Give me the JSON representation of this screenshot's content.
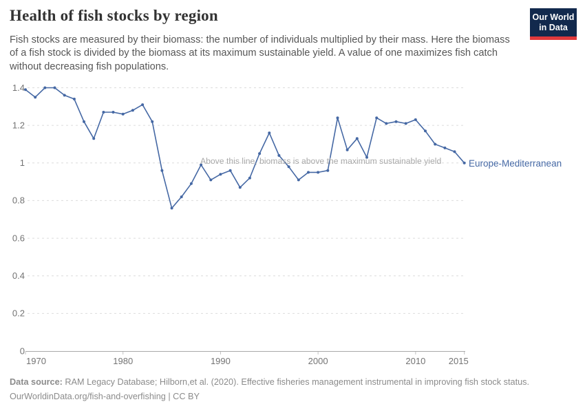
{
  "header": {
    "title": "Health of fish stocks by region",
    "subtitle": "Fish stocks are measured by their biomass: the number of individuals multiplied by their mass. Here the biomass of a fish stock is divided by the biomass at its maximum sustainable yield. A value of one maximizes fish catch without decreasing fish populations.",
    "logo_line1": "Our World",
    "logo_line2": "in Data"
  },
  "colors": {
    "series_blue": "#4568a4",
    "logo_navy": "#12294d",
    "logo_red": "#e0393c",
    "gridline_gray": "#dcdcdc",
    "axis_gray": "#a8a8a8",
    "tick_label_gray": "#737373",
    "annotation_gray": "#a8a8a8"
  },
  "chart_data": {
    "type": "line",
    "title": "Health of fish stocks by region",
    "xlabel": "",
    "ylabel": "",
    "xlim": [
      1970,
      2015
    ],
    "ylim": [
      0,
      1.4
    ],
    "grid": "horizontal dashed",
    "legend_position": "end-of-line label",
    "x_ticks": [
      1970,
      1980,
      1990,
      2000,
      2010,
      2015
    ],
    "y_ticks": [
      0,
      0.2,
      0.4,
      0.6,
      0.8,
      1,
      1.2,
      1.4
    ],
    "y_tick_labels": [
      "0",
      "0.2",
      "0.4",
      "0.6",
      "0.8",
      "1",
      "1.2",
      "1.4"
    ],
    "annotation": "Above this line, biomass is above the maximum sustainable yield",
    "series": [
      {
        "name": "Europe-Mediterranean",
        "color": "#4568a4",
        "x": [
          1970,
          1971,
          1972,
          1973,
          1974,
          1975,
          1976,
          1977,
          1978,
          1979,
          1980,
          1981,
          1982,
          1983,
          1984,
          1985,
          1986,
          1987,
          1988,
          1989,
          1990,
          1991,
          1992,
          1993,
          1994,
          1995,
          1996,
          1997,
          1998,
          1999,
          2000,
          2001,
          2002,
          2003,
          2004,
          2005,
          2006,
          2007,
          2008,
          2009,
          2010,
          2011,
          2012,
          2013,
          2014,
          2015
        ],
        "values": [
          1.39,
          1.35,
          1.4,
          1.4,
          1.36,
          1.34,
          1.22,
          1.13,
          1.27,
          1.27,
          1.26,
          1.28,
          1.31,
          1.22,
          0.96,
          0.76,
          0.82,
          0.89,
          0.99,
          0.91,
          0.94,
          0.96,
          0.87,
          0.92,
          1.05,
          1.16,
          1.04,
          0.98,
          0.91,
          0.95,
          0.95,
          0.96,
          1.24,
          1.07,
          1.13,
          1.03,
          1.24,
          1.21,
          1.22,
          1.21,
          1.23,
          1.17,
          1.1,
          1.08,
          1.06,
          1.0
        ]
      }
    ]
  },
  "footer": {
    "source_label": "Data source:",
    "source_text": " RAM Legacy Database; Hilborn,et al. (2020). Effective fisheries management instrumental in improving fish stock status.",
    "license_line": "OurWorldinData.org/fish-and-overfishing | CC BY"
  }
}
